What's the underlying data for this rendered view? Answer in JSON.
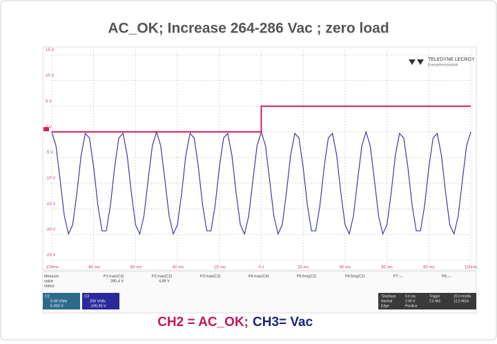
{
  "chart_data": {
    "type": "line",
    "title": "AC_OK; Increase 264-286 Vac ; zero load",
    "caption": [
      "CH2 = AC_OK;",
      "CH3= Vac"
    ],
    "logo": [
      "TELEDYNE LECROY",
      "Everywhereyoulook"
    ],
    "xlim": [
      -100,
      100
    ],
    "ylim": [
      -26,
      16
    ],
    "grid": true,
    "xticks": [
      {
        "value": -100,
        "label": "-100ms"
      },
      {
        "value": -80,
        "label": "-80 ms"
      },
      {
        "value": -60,
        "label": "-60 ms"
      },
      {
        "value": -40,
        "label": "-40 ms"
      },
      {
        "value": -20,
        "label": "-20 ms"
      },
      {
        "value": 0,
        "label": "0 s"
      },
      {
        "value": 20,
        "label": "20 ms"
      },
      {
        "value": 40,
        "label": "40 ms"
      },
      {
        "value": 60,
        "label": "60 ms"
      },
      {
        "value": 80,
        "label": "80 ms"
      },
      {
        "value": 100,
        "label": "100ms"
      }
    ],
    "yticks": [
      {
        "value": 15,
        "label": "15 V"
      },
      {
        "value": 10,
        "label": "10 V"
      },
      {
        "value": 5,
        "label": "5 V"
      },
      {
        "value": 0,
        "label": "0 V"
      },
      {
        "value": -5,
        "label": "-5 V"
      },
      {
        "value": -10,
        "label": "-10 V"
      },
      {
        "value": -15,
        "label": "-15 V"
      },
      {
        "value": -20,
        "label": "-20 V"
      },
      {
        "value": -25,
        "label": "-25 V"
      }
    ],
    "series": [
      {
        "color": "#3b3b94",
        "x": [
          -100,
          -98,
          -96,
          -94,
          -92,
          -90,
          -88,
          -86,
          -84,
          -82,
          -80,
          -78,
          -76,
          -74,
          -72,
          -70,
          -68,
          -66,
          -64,
          -62,
          -60,
          -58,
          -56,
          -54,
          -52,
          -50,
          -48,
          -46,
          -44,
          -42,
          -40,
          -38,
          -36,
          -34,
          -32,
          -30,
          -28,
          -26,
          -24,
          -22,
          -20,
          -18,
          -16,
          -14,
          -12,
          -10,
          -8,
          -6,
          -4,
          -2,
          0,
          2,
          4,
          6,
          8,
          10,
          12,
          14,
          16,
          18,
          20,
          22,
          24,
          26,
          28,
          30,
          32,
          34,
          36,
          38,
          40,
          42,
          44,
          46,
          48,
          50,
          52,
          54,
          56,
          58,
          60,
          62,
          64,
          66,
          68,
          70,
          72,
          74,
          76,
          78,
          80,
          82,
          84,
          86,
          88,
          90,
          92,
          94,
          96,
          98,
          100
        ],
        "values": [
          0,
          -2.7,
          -9.4,
          -16.4,
          -19.9,
          -18.1,
          -11.9,
          -4.6,
          -0.3,
          -1.2,
          -6.9,
          -14.3,
          -19.3,
          -19.3,
          -14.3,
          -6.9,
          -1.2,
          -0.3,
          -4.6,
          -11.9,
          -18.1,
          -19.9,
          -16.4,
          -9.4,
          -2.7,
          0,
          -2.7,
          -9.4,
          -16.4,
          -19.9,
          -18.1,
          -11.9,
          -4.6,
          -0.3,
          -1.2,
          -6.9,
          -14.3,
          -19.3,
          -19.3,
          -14.3,
          -6.9,
          -1.2,
          -0.3,
          -4.6,
          -11.9,
          -18.1,
          -19.9,
          -16.4,
          -9.4,
          -2.7,
          0,
          -2.7,
          -9.4,
          -16.4,
          -19.9,
          -18.1,
          -11.9,
          -4.6,
          -0.3,
          -1.2,
          -6.9,
          -14.3,
          -19.3,
          -19.3,
          -14.3,
          -6.9,
          -1.2,
          -0.3,
          -4.6,
          -11.9,
          -18.1,
          -19.9,
          -16.4,
          -9.4,
          -2.7,
          0,
          -2.7,
          -9.4,
          -16.4,
          -19.9,
          -18.1,
          -11.9,
          -4.6,
          -0.3,
          -1.2,
          -6.9,
          -14.3,
          -19.3,
          -19.3,
          -14.3,
          -6.9,
          -1.2,
          -0.3,
          -4.6,
          -11.9,
          -18.1,
          -19.9,
          -16.4,
          -9.4,
          -2.7,
          0
        ]
      },
      {
        "color": "#d81b60",
        "x": [
          -100,
          0,
          0,
          100
        ],
        "values": [
          0,
          0,
          5,
          5
        ]
      }
    ]
  },
  "scope_panel": {
    "rows": [
      "Measure",
      "value",
      "status"
    ],
    "params": [
      "P1:max(C3)",
      "P2:max(C2)",
      "P3:max(C3)",
      "P4:max(C4)",
      "P5:freq(C2)",
      "P6:freq(C2)",
      "P7:---",
      "P8:---"
    ],
    "values": [
      "285.4 V",
      "4.89 V"
    ],
    "channels": [
      [
        "C2",
        "5.00 V/div",
        "5.000 V"
      ],
      [
        "C3",
        "200 V/div",
        "-195.95 V"
      ]
    ],
    "timebase": [
      "Timebase",
      "0.0 ms",
      "Trigger",
      "20.0 ms/div",
      "Normal",
      "2.90 V",
      "2.5 MS",
      "12.5 MS/s",
      "Edge",
      "Positive"
    ]
  }
}
